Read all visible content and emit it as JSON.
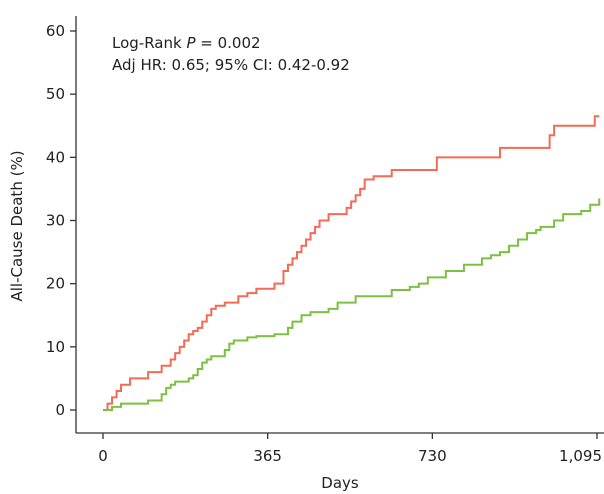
{
  "chart_data": {
    "type": "line",
    "title": "",
    "xlabel": "Days",
    "ylabel": "All-Cause Death (%)",
    "xlim": [
      0,
      1100
    ],
    "ylim": [
      0,
      60
    ],
    "xticks": [
      0,
      365,
      730,
      1095
    ],
    "xtick_labels": [
      "0",
      "365",
      "730",
      "1,095"
    ],
    "yticks": [
      0,
      10,
      20,
      30,
      40,
      50,
      60
    ],
    "ytick_labels": [
      "0",
      "10",
      "20",
      "30",
      "40",
      "50",
      "60"
    ],
    "grid": false,
    "step": true,
    "annotations": {
      "logrank_prefix": "Log-Rank ",
      "logrank_p": "P",
      "logrank_value": " = 0.002",
      "hr_line": "Adj HR: 0.65; 95% CI: 0.42-0.92"
    },
    "series": [
      {
        "color": "#f26b55",
        "x": [
          0,
          10,
          20,
          30,
          40,
          60,
          90,
          100,
          130,
          150,
          160,
          170,
          180,
          190,
          200,
          210,
          220,
          230,
          240,
          250,
          270,
          300,
          320,
          340,
          380,
          400,
          410,
          420,
          430,
          440,
          450,
          460,
          470,
          480,
          490,
          500,
          540,
          550,
          560,
          570,
          580,
          600,
          640,
          660,
          740,
          770,
          860,
          880,
          990,
          1000,
          1090,
          1100
        ],
        "y": [
          0,
          1,
          2,
          3,
          4,
          5,
          5,
          6,
          7,
          8,
          9,
          10,
          11,
          12,
          12.5,
          13,
          14,
          15,
          16,
          16.5,
          17,
          18,
          18.5,
          19.2,
          20,
          22,
          23,
          24,
          25,
          26,
          27,
          28,
          29,
          30,
          30,
          31,
          32,
          33,
          34,
          35,
          36.5,
          37,
          38,
          38,
          40,
          40,
          40,
          41.5,
          43.5,
          45,
          46.5,
          46.5
        ]
      },
      {
        "color": "#7cc040",
        "x": [
          0,
          20,
          40,
          100,
          130,
          140,
          150,
          160,
          190,
          200,
          210,
          220,
          230,
          240,
          270,
          280,
          290,
          320,
          340,
          380,
          410,
          420,
          440,
          460,
          500,
          520,
          560,
          640,
          680,
          700,
          720,
          760,
          800,
          840,
          860,
          880,
          900,
          920,
          940,
          960,
          970,
          1000,
          1020,
          1060,
          1080,
          1100
        ],
        "y": [
          0,
          0.5,
          1,
          1.5,
          2.5,
          3.5,
          4,
          4.5,
          5,
          5.5,
          6.5,
          7.5,
          8,
          8.5,
          9.5,
          10.5,
          11,
          11.5,
          11.7,
          12,
          13,
          14,
          15,
          15.5,
          16,
          17,
          18,
          19,
          19.5,
          20,
          21,
          22,
          23,
          24,
          24.5,
          25,
          26,
          27,
          28,
          28.5,
          29,
          30,
          31,
          31.5,
          32.5,
          33.5
        ]
      }
    ]
  }
}
